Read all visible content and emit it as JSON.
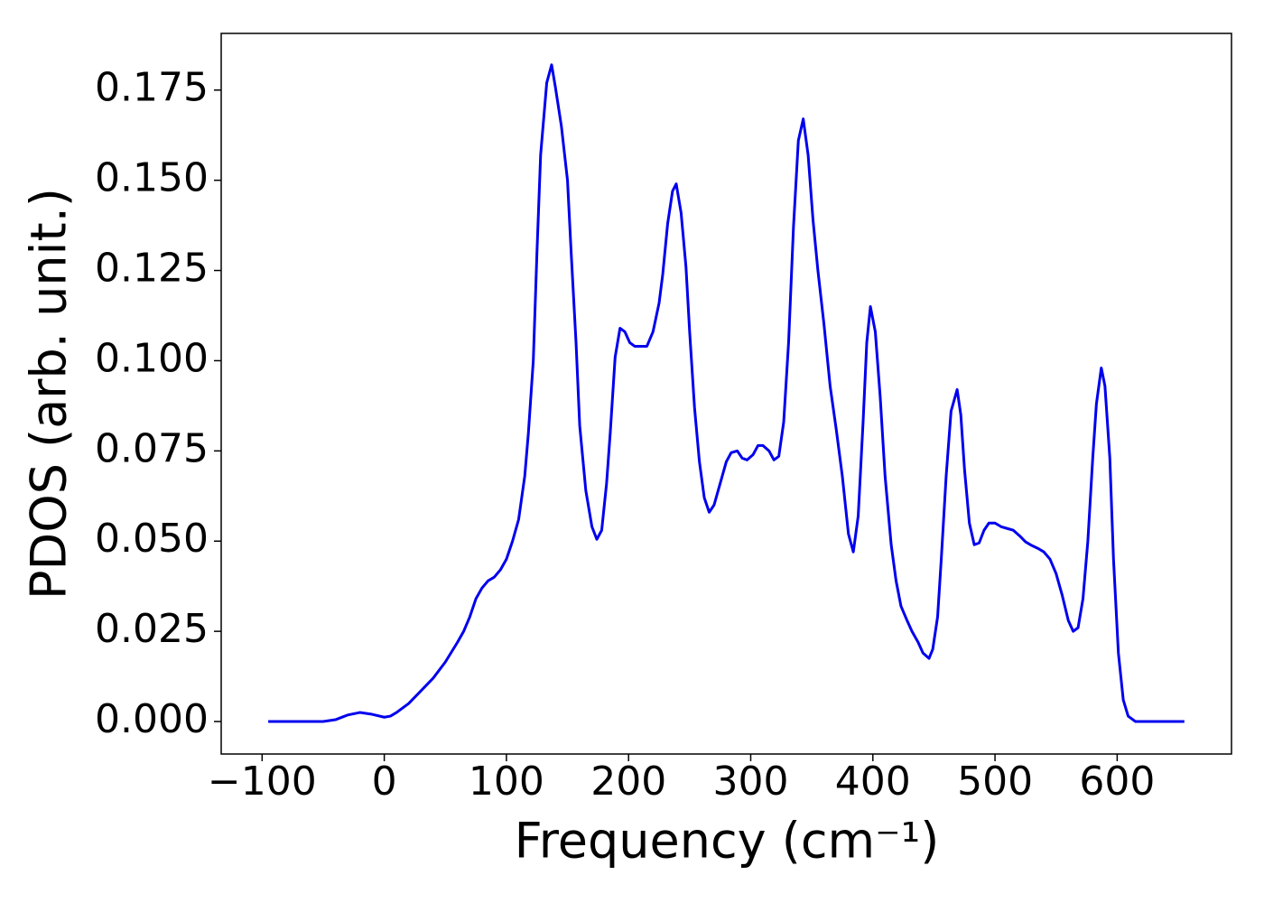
{
  "chart_data": {
    "type": "line",
    "x_label": "Frequency (cm⁻¹)",
    "y_label": "PDOS (arb. unit.)",
    "series": [
      {
        "name": "PDOS",
        "color": "#0000ee",
        "x": [
          -95,
          -50,
          -40,
          -30,
          -20,
          -10,
          0,
          5,
          10,
          20,
          30,
          40,
          50,
          60,
          65,
          70,
          75,
          80,
          85,
          90,
          95,
          100,
          105,
          110,
          115,
          118,
          122,
          125,
          128,
          133,
          137,
          140,
          145,
          150,
          153,
          157,
          160,
          165,
          170,
          174,
          178,
          182,
          185,
          189,
          193,
          197,
          201,
          205,
          210,
          215,
          220,
          225,
          228,
          232,
          236,
          239,
          243,
          247,
          250,
          254,
          258,
          262,
          266,
          270,
          275,
          280,
          284,
          289,
          293,
          297,
          302,
          306,
          310,
          315,
          319,
          323,
          327,
          331,
          335,
          339,
          343,
          347,
          351,
          355,
          360,
          365,
          370,
          375,
          380,
          384,
          388,
          392,
          395,
          398,
          402,
          406,
          410,
          415,
          419,
          423,
          428,
          432,
          437,
          441,
          446,
          449,
          453,
          456,
          460,
          464,
          469,
          472,
          475,
          479,
          483,
          487,
          491,
          495,
          500,
          505,
          510,
          515,
          520,
          525,
          530,
          535,
          540,
          545,
          550,
          555,
          560,
          564,
          568,
          572,
          576,
          580,
          583,
          587,
          590,
          594,
          597,
          601,
          605,
          609,
          615,
          655
        ],
        "values": [
          0,
          0,
          0.0005,
          0.0018,
          0.0025,
          0.002,
          0.0012,
          0.0015,
          0.0025,
          0.005,
          0.0085,
          0.012,
          0.0165,
          0.022,
          0.025,
          0.029,
          0.034,
          0.037,
          0.039,
          0.04,
          0.042,
          0.045,
          0.05,
          0.056,
          0.068,
          0.08,
          0.1,
          0.13,
          0.157,
          0.177,
          0.182,
          0.176,
          0.165,
          0.15,
          0.13,
          0.105,
          0.082,
          0.064,
          0.054,
          0.0505,
          0.053,
          0.066,
          0.08,
          0.101,
          0.109,
          0.108,
          0.105,
          0.104,
          0.104,
          0.104,
          0.108,
          0.116,
          0.124,
          0.138,
          0.147,
          0.149,
          0.141,
          0.126,
          0.108,
          0.087,
          0.072,
          0.062,
          0.058,
          0.06,
          0.066,
          0.072,
          0.0745,
          0.075,
          0.073,
          0.0725,
          0.074,
          0.0765,
          0.0765,
          0.075,
          0.0725,
          0.0735,
          0.083,
          0.105,
          0.137,
          0.161,
          0.167,
          0.157,
          0.139,
          0.125,
          0.11,
          0.093,
          0.081,
          0.068,
          0.052,
          0.047,
          0.057,
          0.083,
          0.105,
          0.115,
          0.108,
          0.09,
          0.068,
          0.049,
          0.039,
          0.032,
          0.028,
          0.025,
          0.022,
          0.019,
          0.0175,
          0.02,
          0.029,
          0.045,
          0.068,
          0.086,
          0.092,
          0.085,
          0.07,
          0.055,
          0.049,
          0.0495,
          0.053,
          0.055,
          0.055,
          0.054,
          0.0535,
          0.053,
          0.0515,
          0.0498,
          0.0488,
          0.048,
          0.047,
          0.045,
          0.041,
          0.035,
          0.028,
          0.025,
          0.026,
          0.034,
          0.05,
          0.073,
          0.088,
          0.098,
          0.093,
          0.073,
          0.045,
          0.019,
          0.006,
          0.0015,
          0,
          0
        ]
      }
    ],
    "xlim": [
      -133.5,
      693.6
    ],
    "xticks": [
      {
        "value": -100,
        "label": "−100"
      },
      0,
      100,
      200,
      300,
      400,
      500,
      600
    ],
    "ylim": [
      -0.009,
      0.1907
    ],
    "yticks": [
      {
        "value": 0,
        "label": "0.000"
      },
      0.025,
      {
        "value": 0.05,
        "label": "0.050"
      },
      0.075,
      {
        "value": 0.1,
        "label": "0.100"
      },
      0.125,
      {
        "value": 0.15,
        "label": "0.150"
      },
      0.175
    ]
  }
}
